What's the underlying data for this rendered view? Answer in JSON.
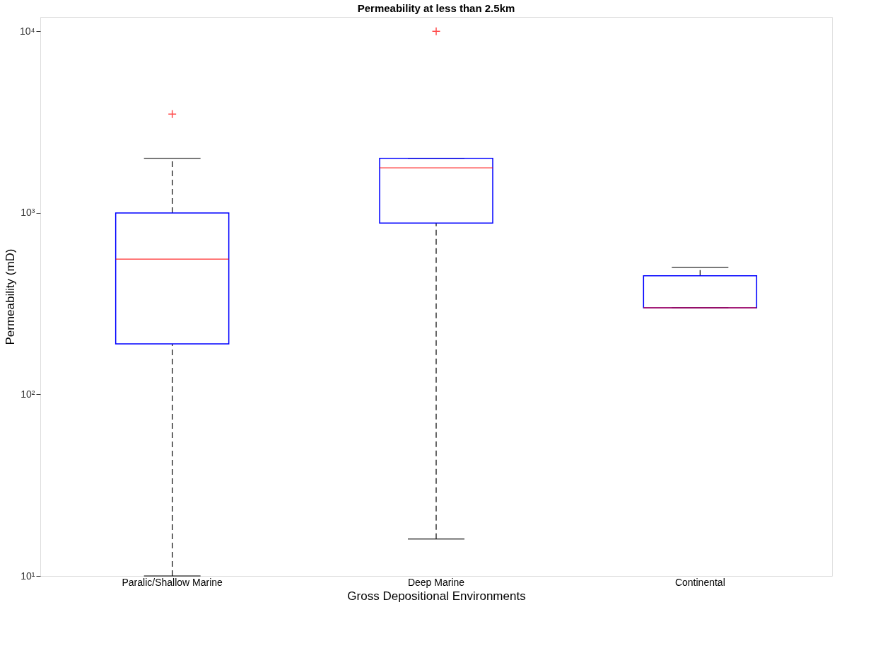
{
  "chart_data": {
    "type": "box",
    "title": "Permeability at less than 2.5km",
    "xlabel": "Gross Depositional Environments",
    "ylabel": "Permeability (mD)",
    "categories": [
      "Paralic/Shallow Marine",
      "Deep Marine",
      "Continental"
    ],
    "log": true,
    "ylim": [
      10,
      12000
    ],
    "yticks": [
      {
        "value": 10,
        "label": "10¹"
      },
      {
        "value": 100,
        "label": "10²"
      },
      {
        "value": 1000,
        "label": "10³"
      },
      {
        "value": 10000,
        "label": "10⁴"
      }
    ],
    "series": [
      {
        "boxes": [
          {
            "low": 10,
            "q1": 190,
            "median": 556,
            "q3": 1000,
            "high": 2000,
            "outliers": [
              3500
            ]
          },
          {
            "low": 16,
            "q1": 878,
            "median": 1770,
            "q3": 2000,
            "high": 2000,
            "outliers": [
              10000
            ]
          },
          {
            "low": 300,
            "q1": 300,
            "median": 300,
            "q3": 450,
            "high": 500
          }
        ]
      }
    ]
  }
}
